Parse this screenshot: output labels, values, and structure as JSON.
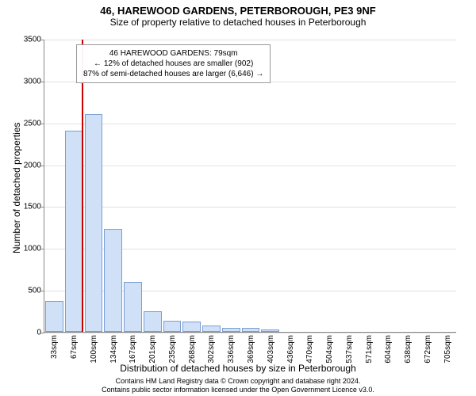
{
  "title": "46, HAREWOOD GARDENS, PETERBOROUGH, PE3 9NF",
  "subtitle": "Size of property relative to detached houses in Peterborough",
  "ylabel": "Number of detached properties",
  "xlabel": "Distribution of detached houses by size in Peterborough",
  "chart": {
    "type": "bar",
    "ylim": [
      0,
      3500
    ],
    "ytick_step": 500,
    "yticks": [
      0,
      500,
      1000,
      1500,
      2000,
      2500,
      3000,
      3500
    ],
    "x_labels": [
      "33sqm",
      "67sqm",
      "100sqm",
      "134sqm",
      "167sqm",
      "201sqm",
      "235sqm",
      "268sqm",
      "302sqm",
      "336sqm",
      "369sqm",
      "403sqm",
      "436sqm",
      "470sqm",
      "504sqm",
      "537sqm",
      "571sqm",
      "604sqm",
      "638sqm",
      "672sqm",
      "705sqm"
    ],
    "values": [
      370,
      2400,
      2600,
      1230,
      600,
      250,
      130,
      120,
      80,
      50,
      50,
      30,
      0,
      0,
      0,
      0,
      0,
      0,
      0,
      0,
      0
    ],
    "bar_fill": "#cfe0f7",
    "bar_stroke": "#7a9fd4",
    "ref_line_color": "#cc0000",
    "ref_line_position_idx": 1.4,
    "grid_color": "#e0e0e0",
    "axis_color": "#888888",
    "background": "#ffffff"
  },
  "info_box": {
    "line1": "46 HAREWOOD GARDENS: 79sqm",
    "line2": "← 12% of detached houses are smaller (902)",
    "line3": "87% of semi-detached houses are larger (6,646) →"
  },
  "footer": {
    "line1": "Contains HM Land Registry data © Crown copyright and database right 2024.",
    "line2": "Contains public sector information licensed under the Open Government Licence v3.0."
  }
}
